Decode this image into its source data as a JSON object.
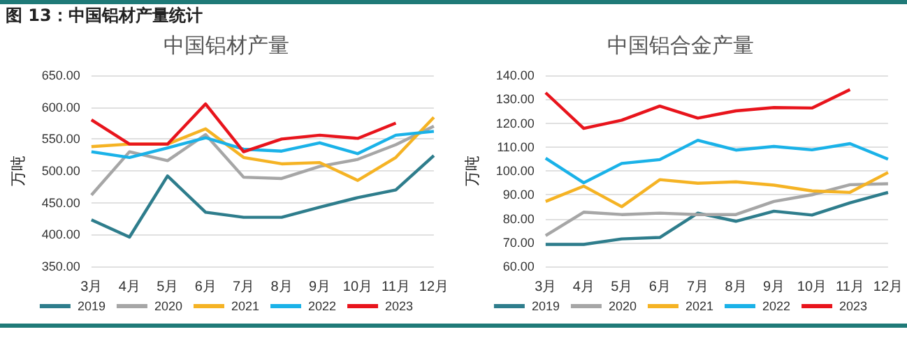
{
  "chart_data": [
    {
      "type": "line",
      "annotations": [
        "图 13：中国铝材产量统计"
      ],
      "title": "中国铝材产量",
      "ylabel": "万吨",
      "categories": [
        "3月",
        "4月",
        "5月",
        "6月",
        "7月",
        "8月",
        "9月",
        "10月",
        "11月",
        "12月"
      ],
      "series": [
        {
          "name": "2019",
          "color": "#2e7d8c",
          "values": [
            423,
            396,
            492,
            435,
            427,
            427,
            443,
            458,
            470,
            524
          ]
        },
        {
          "name": "2020",
          "color": "#a6a6a6",
          "values": [
            462,
            530,
            516,
            557,
            490,
            488,
            507,
            518,
            541,
            570
          ]
        },
        {
          "name": "2021",
          "color": "#f5b324",
          "values": [
            538,
            542,
            542,
            566,
            521,
            511,
            513,
            485,
            521,
            584
          ]
        },
        {
          "name": "2022",
          "color": "#1ab2e8",
          "values": [
            530,
            521,
            536,
            552,
            534,
            531,
            544,
            527,
            556,
            562
          ]
        },
        {
          "name": "2023",
          "color": "#e8141c",
          "values": [
            580,
            542,
            542,
            605,
            530,
            550,
            556,
            551,
            575,
            null
          ]
        }
      ],
      "ylim": [
        350,
        650
      ],
      "yticks": [
        {
          "value": 350,
          "label": "350.00"
        },
        {
          "value": 400,
          "label": "400.00"
        },
        {
          "value": 450,
          "label": "450.00"
        },
        {
          "value": 500,
          "label": "500.00"
        },
        {
          "value": 550,
          "label": "550.00"
        },
        {
          "value": 600,
          "label": "600.00"
        },
        {
          "value": 650,
          "label": "650.00"
        }
      ],
      "grid": "y",
      "legend": "bottom",
      "marker": "none",
      "line_style": "solid"
    },
    {
      "type": "line",
      "title": "中国铝合金产量",
      "ylabel": "万吨",
      "categories": [
        "3月",
        "4月",
        "5月",
        "6月",
        "7月",
        "8月",
        "9月",
        "10月",
        "11月",
        "12月"
      ],
      "series": [
        {
          "name": "2019",
          "color": "#2e7d8c",
          "values": [
            69.2,
            69.2,
            71.5,
            72.1,
            82.3,
            78.9,
            83.1,
            81.5,
            86.6,
            91.0
          ]
        },
        {
          "name": "2020",
          "color": "#a6a6a6",
          "values": [
            72.9,
            82.7,
            81.7,
            82.3,
            81.7,
            81.7,
            87.2,
            90.0,
            94.2,
            94.6
          ]
        },
        {
          "name": "2021",
          "color": "#f5b324",
          "values": [
            87.2,
            93.6,
            85.0,
            96.3,
            94.8,
            95.4,
            94.0,
            91.6,
            91.0,
            99.3
          ]
        },
        {
          "name": "2022",
          "color": "#1ab2e8",
          "values": [
            105.3,
            95.0,
            103.1,
            104.7,
            112.8,
            108.7,
            110.2,
            108.8,
            111.4,
            104.9
          ]
        },
        {
          "name": "2023",
          "color": "#e8141c",
          "values": [
            132.7,
            117.8,
            121.2,
            127.1,
            122.1,
            125.1,
            126.5,
            126.3,
            134.0,
            null
          ]
        }
      ],
      "ylim": [
        60,
        140
      ],
      "yticks": [
        {
          "value": 60,
          "label": "60.00"
        },
        {
          "value": 70,
          "label": "70.00"
        },
        {
          "value": 80,
          "label": "80.00"
        },
        {
          "value": 90,
          "label": "90.00"
        },
        {
          "value": 100,
          "label": "100.00"
        },
        {
          "value": 110,
          "label": "110.00"
        },
        {
          "value": 120,
          "label": "120.00"
        },
        {
          "value": 130,
          "label": "130.00"
        },
        {
          "value": 140,
          "label": "140.00"
        }
      ],
      "grid": "y",
      "legend": "bottom",
      "marker": "none",
      "line_style": "solid"
    }
  ]
}
